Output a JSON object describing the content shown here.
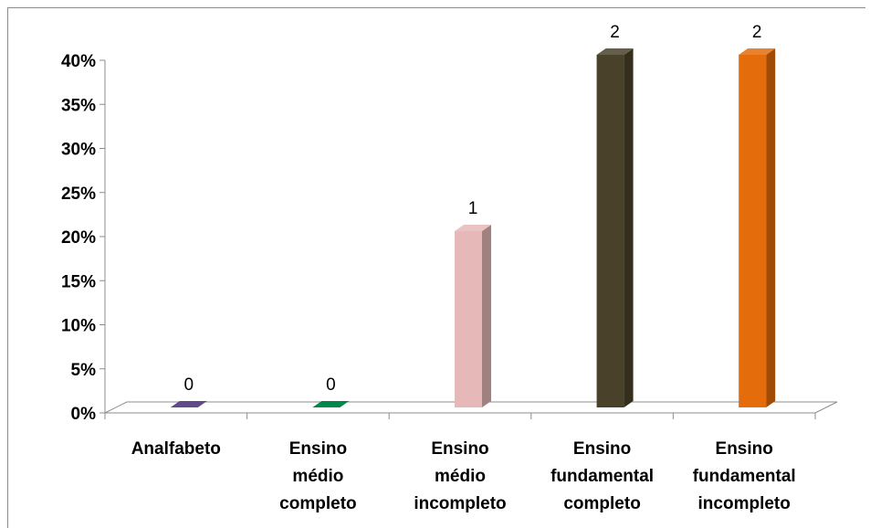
{
  "chart_data": {
    "type": "bar",
    "categories": [
      [
        "Analfabeto"
      ],
      [
        "Ensino",
        "médio",
        "completo"
      ],
      [
        "Ensino",
        "médio",
        "incompleto"
      ],
      [
        "Ensino",
        "fundamental",
        "completo"
      ],
      [
        "Ensino",
        "fundamental",
        "incompleto"
      ]
    ],
    "values": [
      0,
      0,
      0.2,
      0.4,
      0.4
    ],
    "data_labels": [
      "0",
      "0",
      "1",
      "2",
      "2"
    ],
    "colors": [
      "#5f4b8b",
      "#00874a",
      "#e6b8b7",
      "#4a412a",
      "#e46c0a"
    ],
    "ylim": [
      0,
      0.4
    ],
    "yticks": [
      0,
      0.05,
      0.1,
      0.15,
      0.2,
      0.25,
      0.3,
      0.35,
      0.4
    ],
    "ytick_labels": [
      "0%",
      "5%",
      "10%",
      "15%",
      "20%",
      "25%",
      "30%",
      "35%",
      "40%"
    ],
    "style": "3d-column",
    "grid": false,
    "legend": "none"
  }
}
